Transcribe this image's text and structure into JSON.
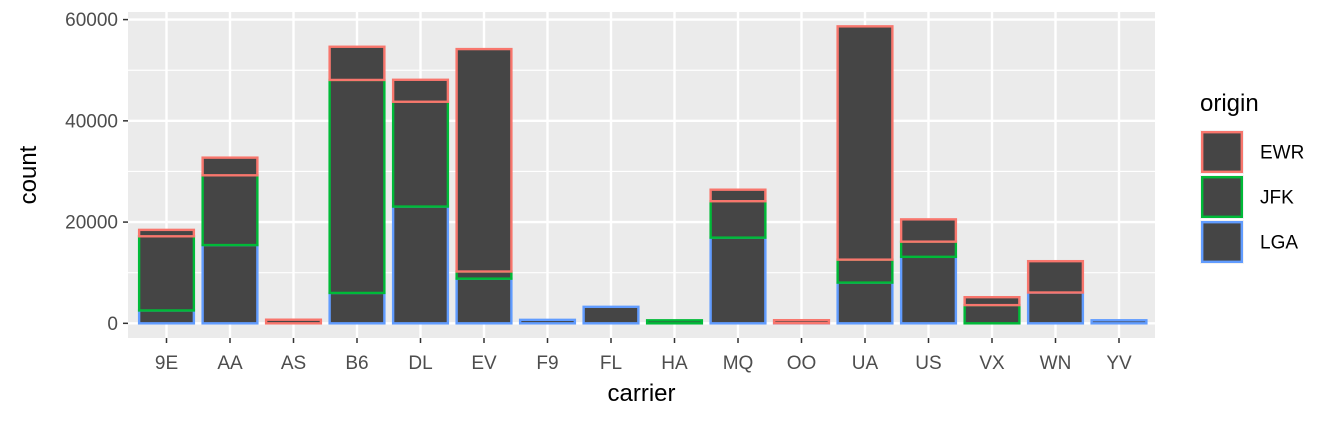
{
  "chart_data": {
    "type": "bar",
    "stacked": true,
    "fill_color": "#454545",
    "categories": [
      "9E",
      "AA",
      "AS",
      "B6",
      "DL",
      "EV",
      "F9",
      "FL",
      "HA",
      "MQ",
      "OO",
      "UA",
      "US",
      "VX",
      "WN",
      "YV"
    ],
    "series": [
      {
        "name": "EWR",
        "color": "#F8766D",
        "values": [
          1268,
          3487,
          714,
          6557,
          4342,
          43939,
          0,
          0,
          0,
          2276,
          6,
          46087,
          4405,
          1566,
          6188,
          0
        ]
      },
      {
        "name": "JFK",
        "color": "#00BA38",
        "values": [
          14651,
          13783,
          0,
          42076,
          20701,
          1408,
          0,
          0,
          342,
          7193,
          0,
          4534,
          2995,
          3596,
          0,
          0
        ]
      },
      {
        "name": "LGA",
        "color": "#619CFF",
        "values": [
          2541,
          15459,
          0,
          6002,
          23067,
          8826,
          685,
          3260,
          0,
          16928,
          26,
          8044,
          13136,
          0,
          6087,
          601
        ]
      }
    ],
    "xlabel": "carrier",
    "ylabel": "count",
    "ylim": [
      -2900,
      61500
    ],
    "yticks": [
      0,
      20000,
      40000,
      60000
    ],
    "ytick_labels": [
      "0",
      "20000",
      "40000",
      "60000"
    ],
    "grid": true,
    "legend": {
      "title": "origin",
      "position": "right"
    }
  }
}
